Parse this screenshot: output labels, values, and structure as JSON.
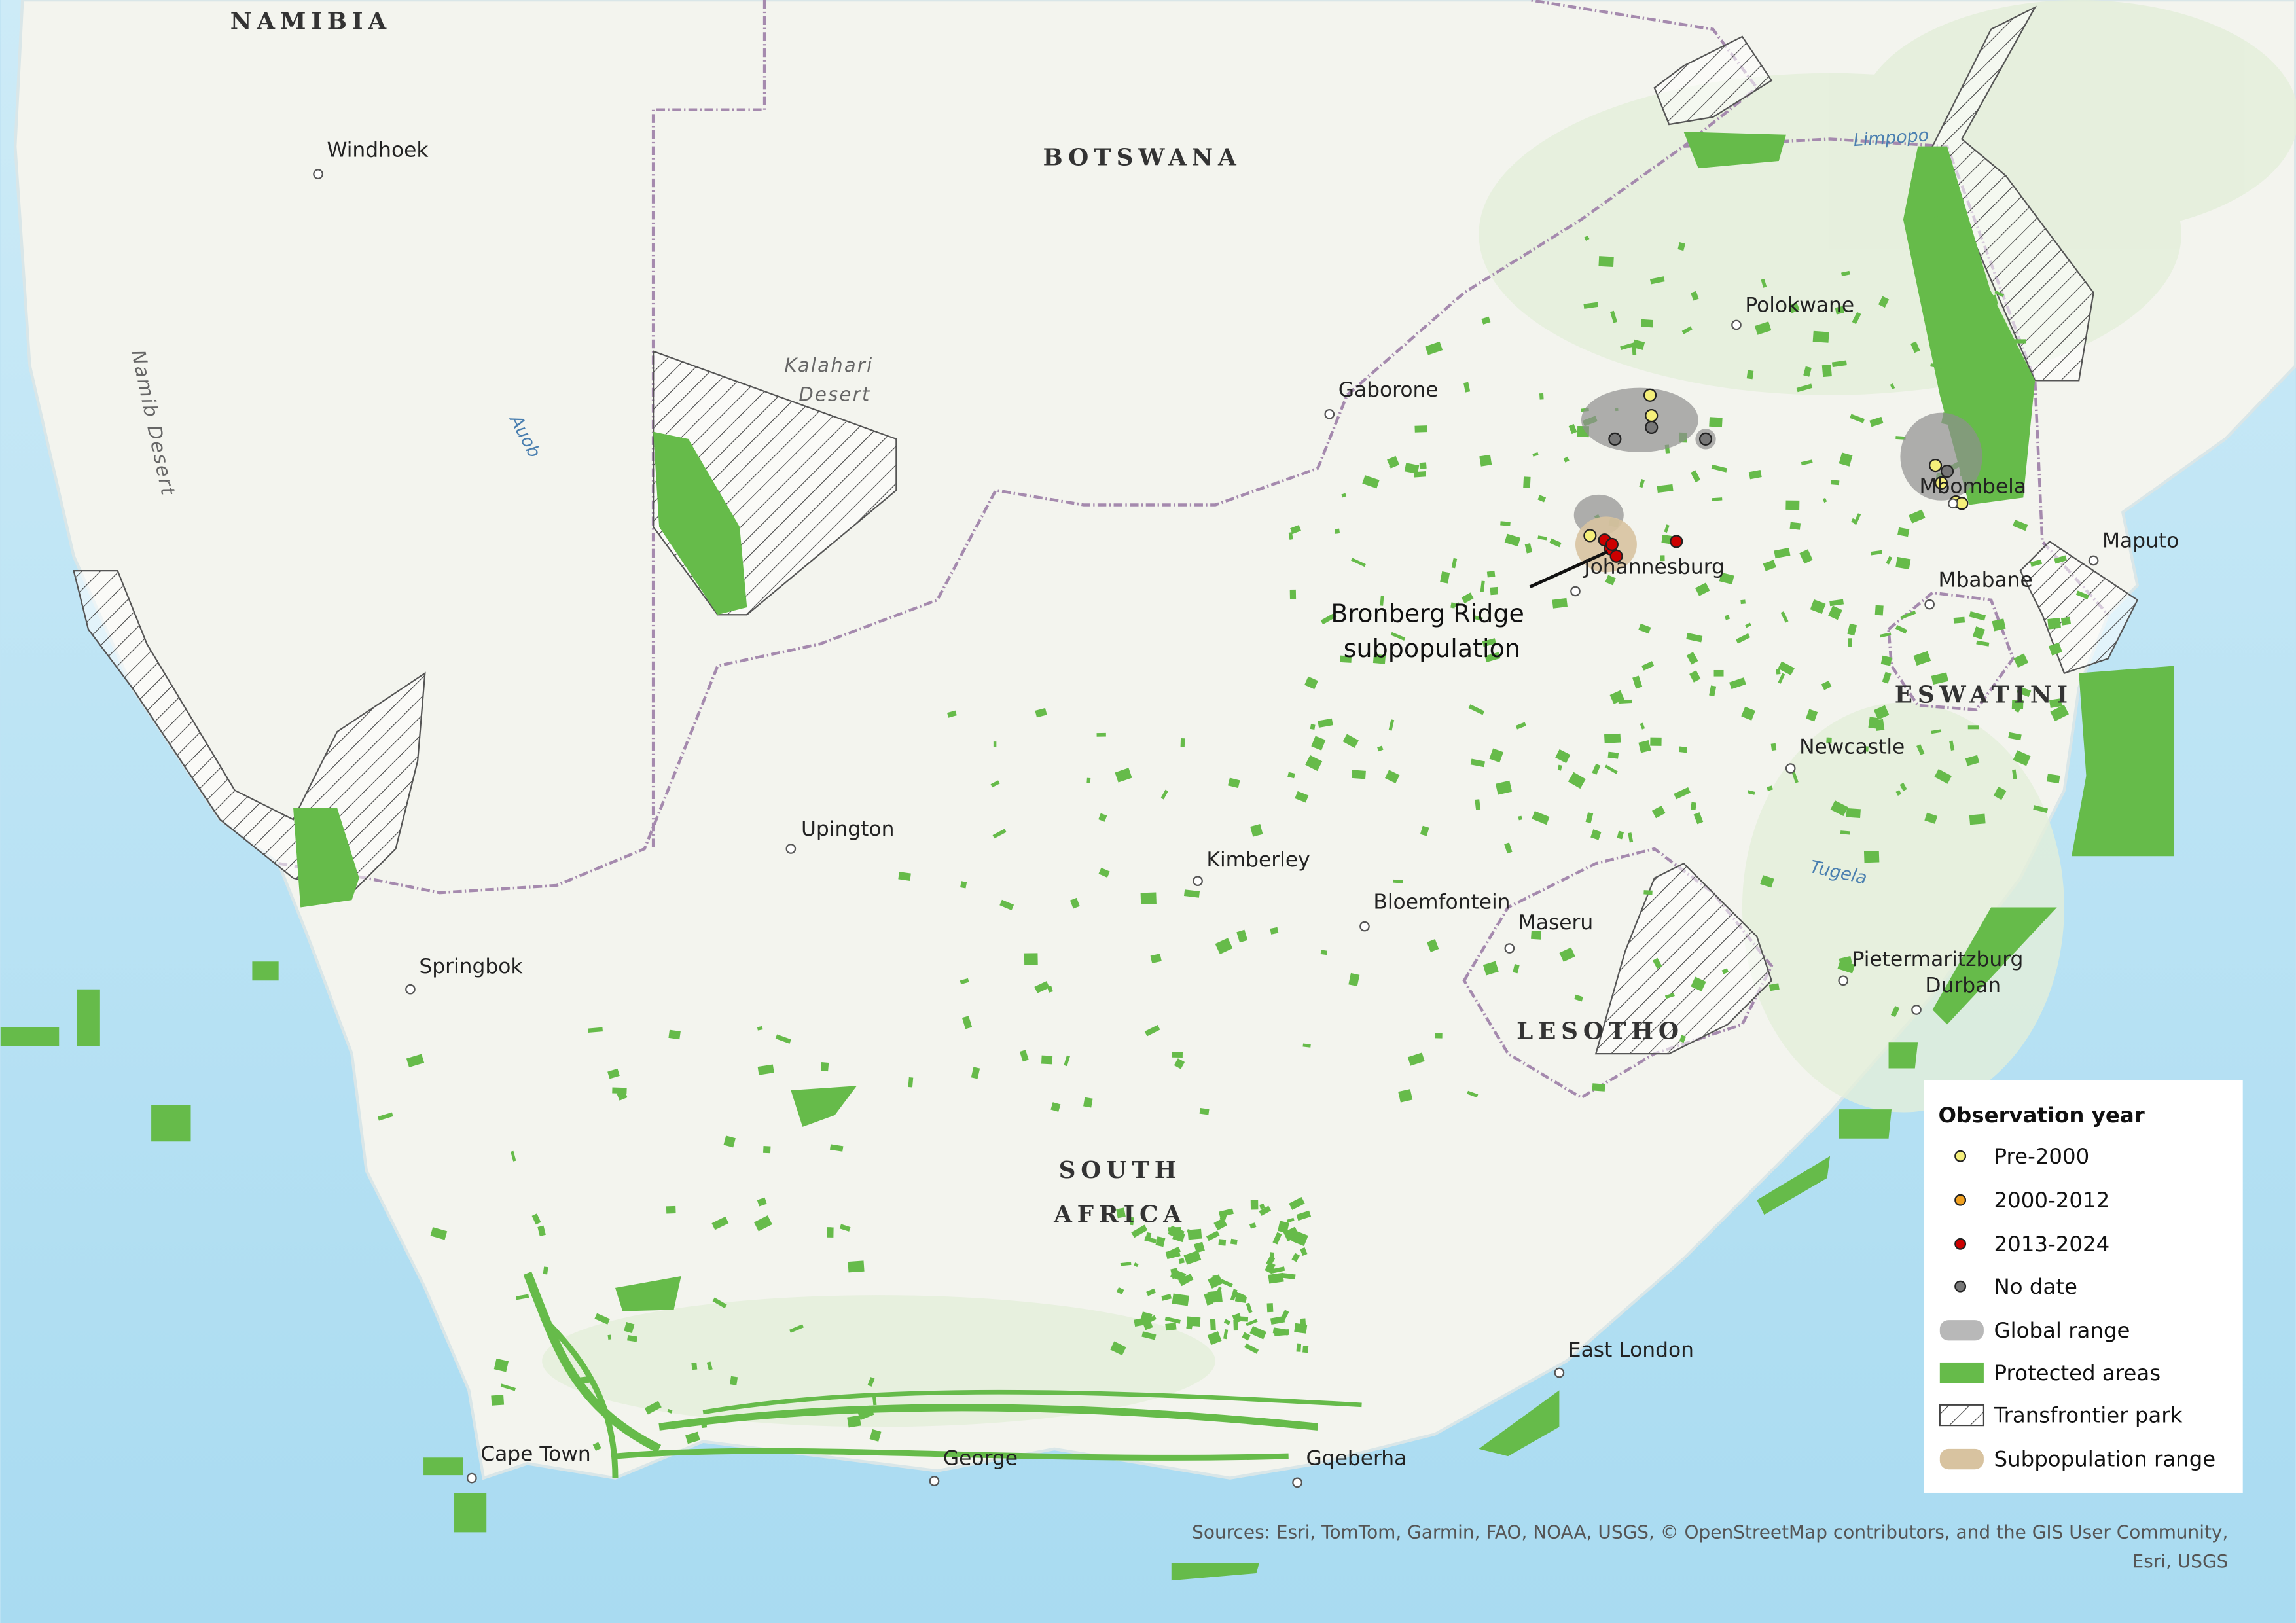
{
  "countries": [
    "NAMIBIA",
    "BOTSWANA",
    "SOUTH",
    "AFRICA",
    "LESOTHO",
    "ESWATINI"
  ],
  "regions": [
    "Namib Desert",
    "Kalahari",
    "Desert"
  ],
  "rivers": [
    "Auob",
    "Limpopo",
    "Tugela"
  ],
  "cities": [
    "Windhoek",
    "Gaborone",
    "Polokwane",
    "Mbombela",
    "Maputo",
    "Mbabane",
    "Johannesburg",
    "Newcastle",
    "Upington",
    "Kimberley",
    "Bloemfontein",
    "Maseru",
    "Pietermaritzburg",
    "Durban",
    "Springbok",
    "East London",
    "Cape Town",
    "George",
    "Gqeberha"
  ],
  "annotation": [
    "Bronberg Ridge",
    "subpopulation"
  ],
  "legend": {
    "title": "Observation year",
    "items": [
      "Pre-2000",
      "2000-2012",
      "2013-2024",
      "No date",
      "Global range",
      "Protected areas",
      "Transfrontier park",
      "Subpopulation range"
    ]
  },
  "sources": [
    "Sources: Esri, TomTom, Garmin, FAO, NOAA, USGS, © OpenStreetMap contributors, and the GIS User Community,",
    "Esri, USGS"
  ]
}
